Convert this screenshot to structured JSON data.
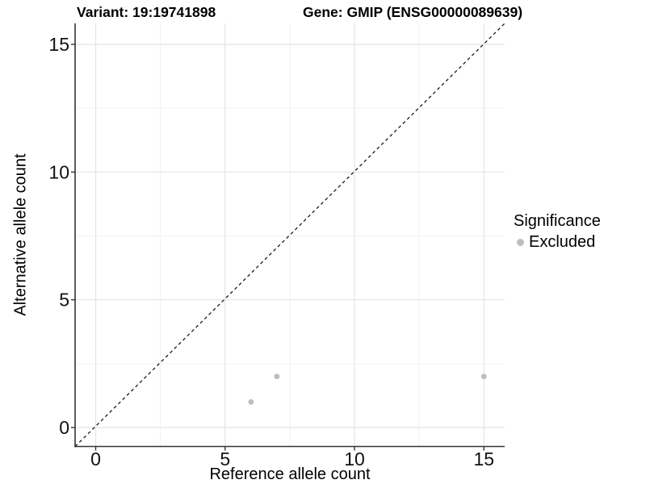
{
  "titles": {
    "variant": "Variant: 19:19741898",
    "gene": "Gene: GMIP (ENSG00000089639)"
  },
  "axes": {
    "x_label": "Reference allele count",
    "y_label": "Alternative allele count"
  },
  "legend": {
    "title": "Significance",
    "excluded_label": "Excluded"
  },
  "chart_data": {
    "type": "scatter",
    "title_left": "Variant: 19:19741898",
    "title_right": "Gene: GMIP (ENSG00000089639)",
    "xlabel": "Reference allele count",
    "ylabel": "Alternative allele count",
    "xlim": [
      -0.8,
      15.8
    ],
    "ylim": [
      -0.8,
      15.8
    ],
    "x_ticks": [
      0,
      5,
      10,
      15
    ],
    "y_ticks": [
      0,
      5,
      10,
      15
    ],
    "x_minor": [
      2.5,
      7.5,
      12.5
    ],
    "y_minor": [
      2.5,
      7.5,
      12.5
    ],
    "grid": "major and minor gridlines, white background",
    "series": [
      {
        "name": "Excluded",
        "color": "#bebebe",
        "points": [
          [
            6,
            1
          ],
          [
            7,
            2
          ],
          [
            15,
            2
          ]
        ]
      }
    ],
    "reference_line": {
      "kind": "identity y = x",
      "style": "dashed",
      "color": "#1a1a1a"
    },
    "legend": {
      "title": "Significance",
      "position": "right",
      "entries": [
        {
          "label": "Excluded",
          "color": "#bebebe"
        }
      ]
    }
  },
  "colors": {
    "point": "#bebebe",
    "grid_major": "#e4e4e4",
    "grid_minor": "#f1f1f1",
    "axis": "#333333",
    "dashed_line": "#1a1a1a",
    "background": "#ffffff"
  }
}
